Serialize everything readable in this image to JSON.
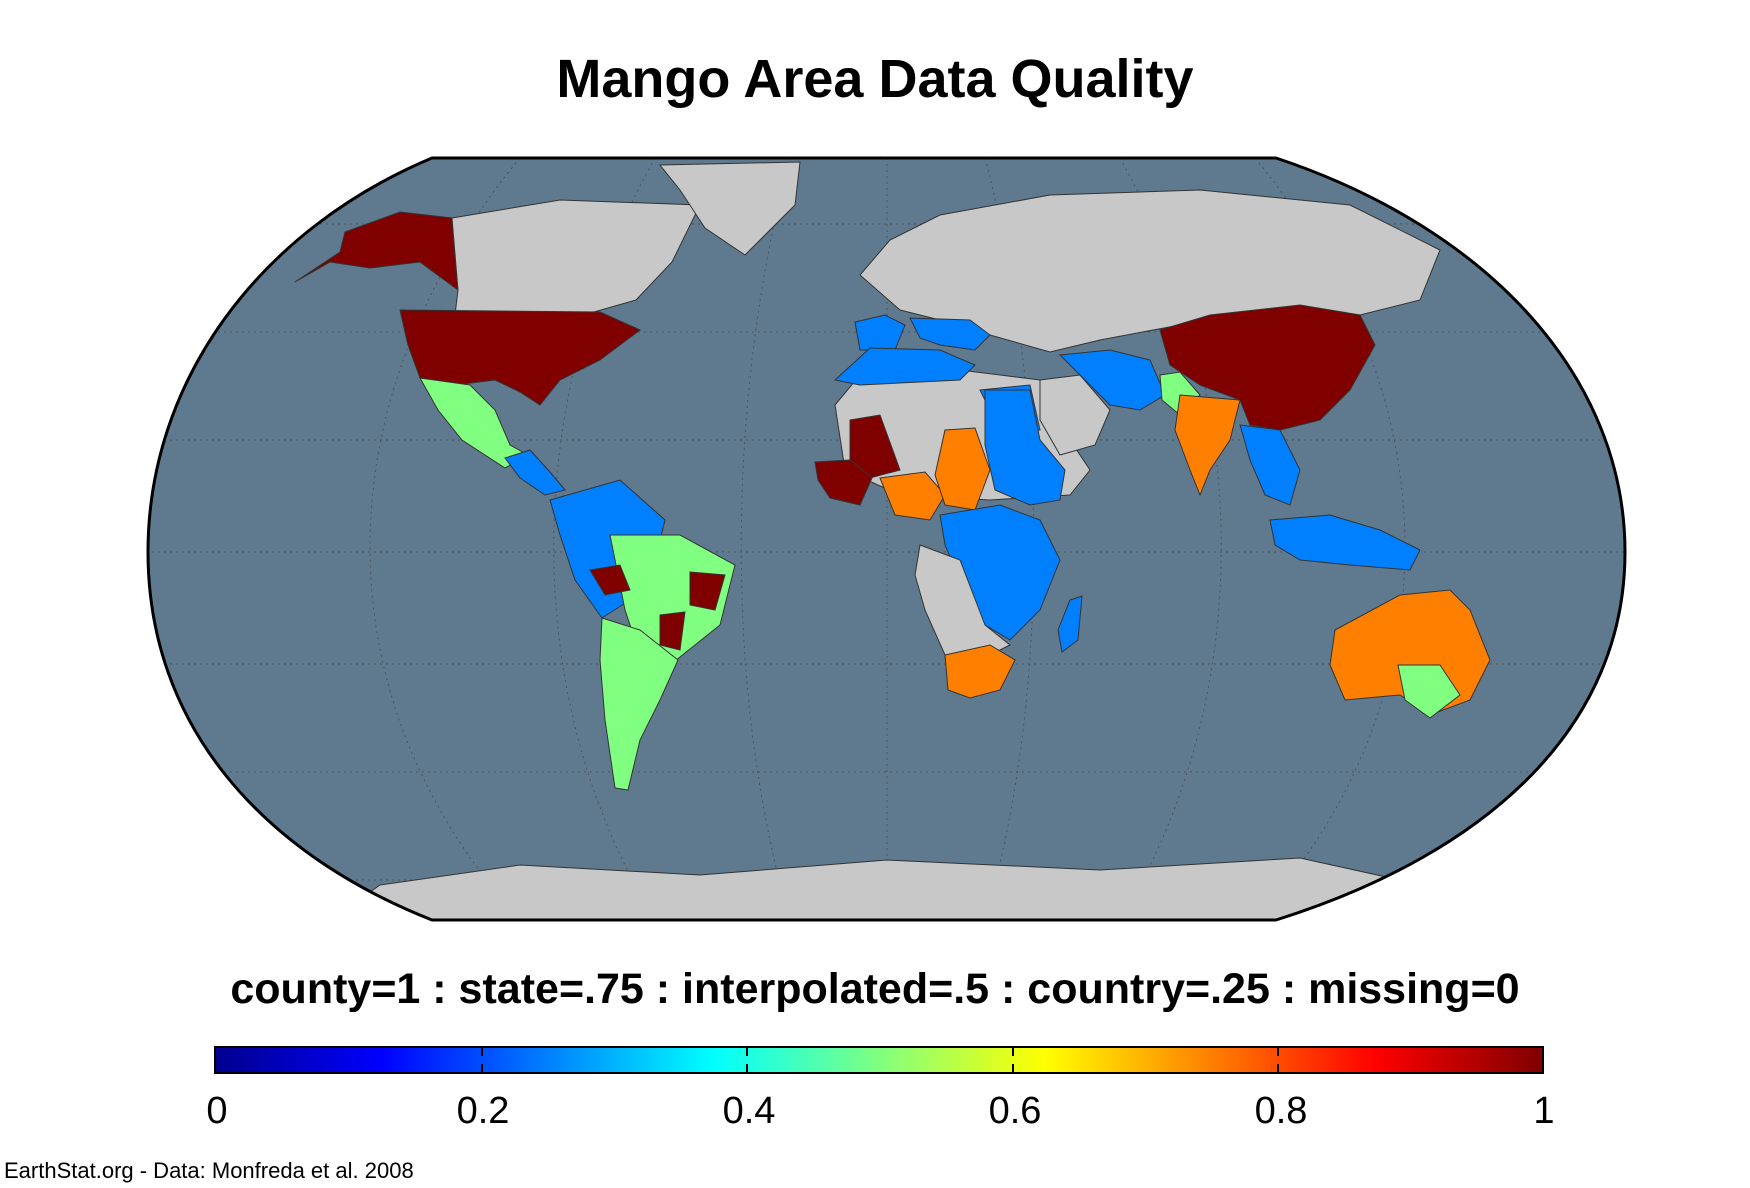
{
  "title": "Mango Area Data Quality",
  "legend": {
    "label": "county=1 : state=.75 : interpolated=.5 : country=.25 : missing=0",
    "ticks": [
      "0",
      "0.2",
      "0.4",
      "0.6",
      "0.8",
      "1"
    ],
    "range": [
      0,
      1
    ],
    "colormap": "jet"
  },
  "credit": "EarthStat.org - Data: Monfreda et al. 2008",
  "colors": {
    "ocean": "#5f7a8e",
    "no_data_land": "#c8c8c8",
    "county": "#800000",
    "state": "#ff8000",
    "interpolated": "#80ff80",
    "country": "#0080ff"
  },
  "regions": [
    {
      "name": "Alaska",
      "value": 1
    },
    {
      "name": "Canada",
      "value": null
    },
    {
      "name": "Greenland",
      "value": null
    },
    {
      "name": "United States",
      "value": 1
    },
    {
      "name": "Mexico",
      "value": 0.5
    },
    {
      "name": "Central America",
      "value": 0.25
    },
    {
      "name": "Northern South America",
      "value": 0.25
    },
    {
      "name": "Brazil",
      "value": 0.5
    },
    {
      "name": "Brazil county patches",
      "value": 1
    },
    {
      "name": "Southern South America",
      "value": 0.5
    },
    {
      "name": "Europe and Russia",
      "value": null
    },
    {
      "name": "Iberia",
      "value": 0.25
    },
    {
      "name": "Mediterranean Europe",
      "value": 0.25
    },
    {
      "name": "North Africa",
      "value": 0.25
    },
    {
      "name": "Sahara and Sahel",
      "value": null
    },
    {
      "name": "Mali",
      "value": 1
    },
    {
      "name": "West Africa coast",
      "value": 1
    },
    {
      "name": "Nigeria",
      "value": 0.75
    },
    {
      "name": "Chad and Central African Republic",
      "value": 0.75
    },
    {
      "name": "Sudan and Ethiopia",
      "value": 0.25
    },
    {
      "name": "Central Africa",
      "value": 0.25
    },
    {
      "name": "Southern Africa",
      "value": null
    },
    {
      "name": "South Africa",
      "value": 0.75
    },
    {
      "name": "Madagascar",
      "value": 0.25
    },
    {
      "name": "Arabia",
      "value": null
    },
    {
      "name": "Iran and Middle East",
      "value": 0.25
    },
    {
      "name": "India",
      "value": 0.75
    },
    {
      "name": "Northern India",
      "value": 0.5
    },
    {
      "name": "China",
      "value": 1
    },
    {
      "name": "Southeast Asia",
      "value": 0.25
    },
    {
      "name": "Indonesia",
      "value": 0.25
    },
    {
      "name": "Australia",
      "value": 0.75
    },
    {
      "name": "Southeast Australia",
      "value": 0.5
    },
    {
      "name": "Antarctica",
      "value": null
    }
  ]
}
